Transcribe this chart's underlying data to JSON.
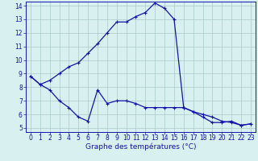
{
  "hours": [
    0,
    1,
    2,
    3,
    4,
    5,
    6,
    7,
    8,
    9,
    10,
    11,
    12,
    13,
    14,
    15,
    16,
    17,
    18,
    19,
    20,
    21,
    22,
    23
  ],
  "temp_max": [
    8.8,
    8.2,
    8.5,
    9.0,
    9.5,
    9.8,
    10.5,
    11.2,
    12.0,
    12.8,
    12.8,
    13.2,
    13.5,
    14.2,
    13.8,
    13.0,
    6.5,
    6.2,
    5.8,
    5.4,
    5.4,
    5.5,
    5.2,
    5.3
  ],
  "temp_min": [
    8.8,
    8.2,
    7.8,
    7.0,
    6.5,
    5.8,
    5.5,
    7.8,
    6.8,
    7.0,
    7.0,
    6.8,
    6.5,
    6.5,
    6.5,
    6.5,
    6.5,
    6.2,
    6.0,
    5.8,
    5.5,
    5.4,
    5.2,
    5.3
  ],
  "line_color": "#1414aa",
  "bg_color": "#d8f0f0",
  "grid_color": "#aacaca",
  "xlabel": "Graphe des températures (°C)",
  "xmin": 0,
  "xmax": 23,
  "ymin": 5,
  "ymax": 14,
  "yticks": [
    5,
    6,
    7,
    8,
    9,
    10,
    11,
    12,
    13,
    14
  ],
  "xticks": [
    0,
    1,
    2,
    3,
    4,
    5,
    6,
    7,
    8,
    9,
    10,
    11,
    12,
    13,
    14,
    15,
    16,
    17,
    18,
    19,
    20,
    21,
    22,
    23
  ],
  "tick_fontsize": 5.5,
  "xlabel_fontsize": 6.5
}
